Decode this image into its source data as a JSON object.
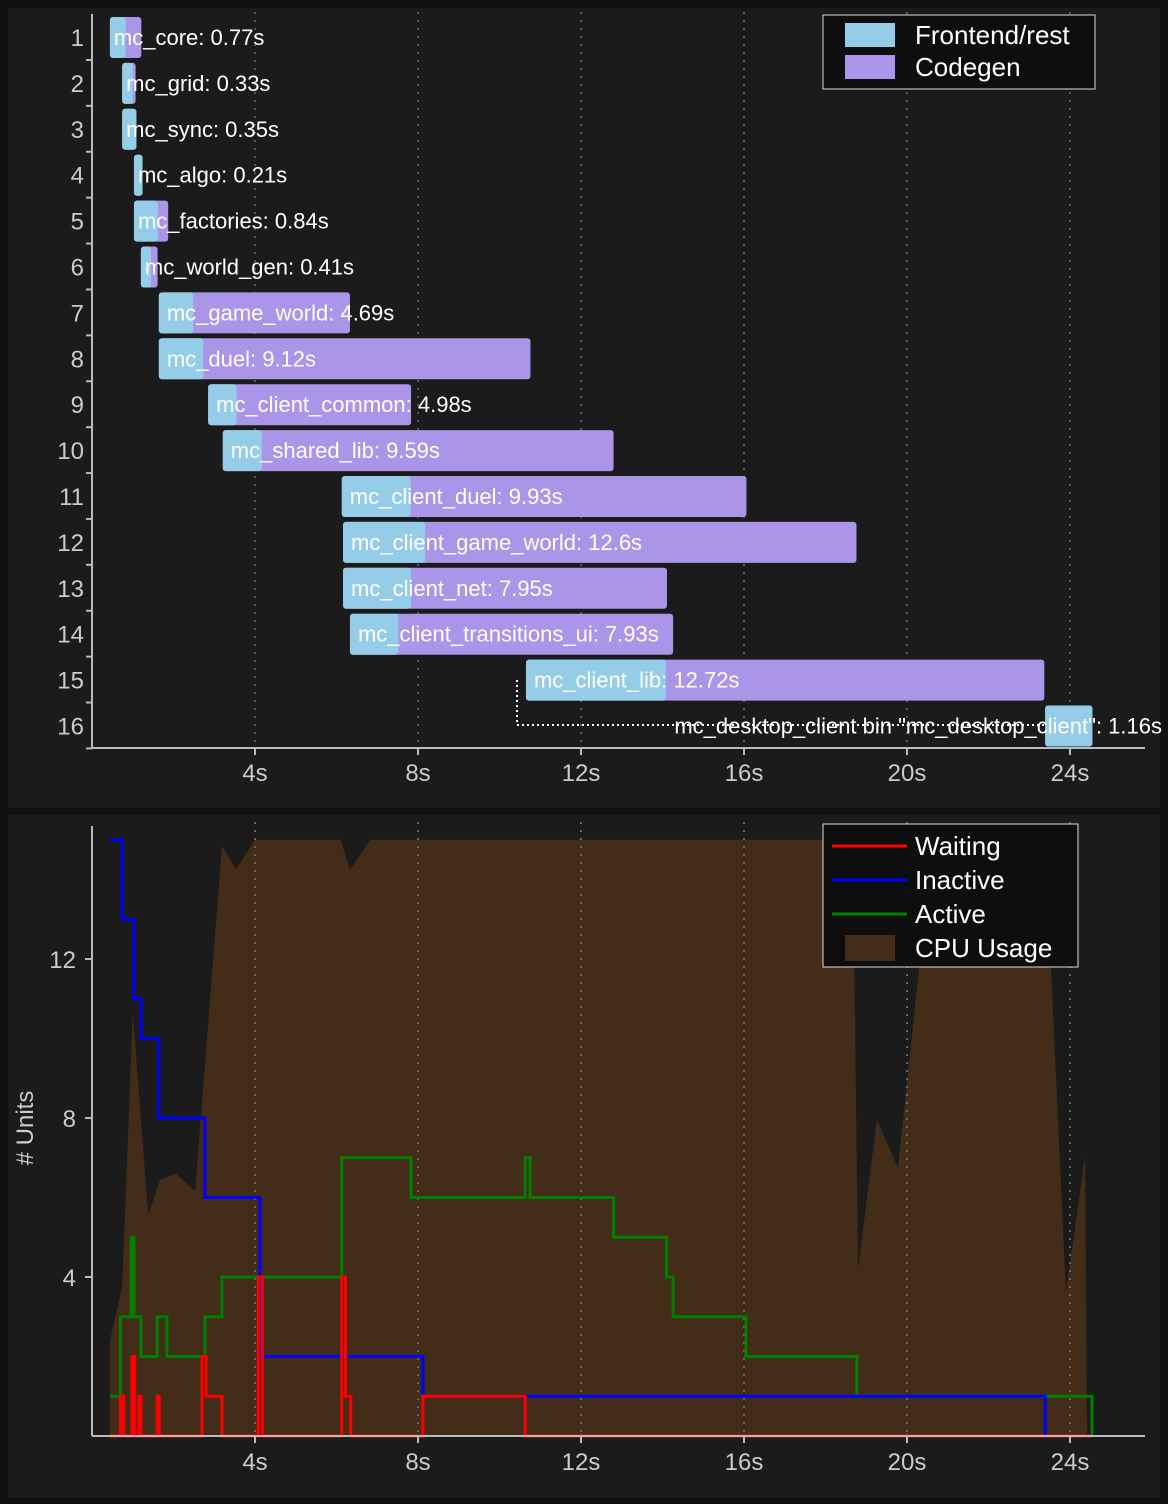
{
  "chart_data": [
    {
      "type": "bar",
      "subtype": "gantt",
      "x_unit": "s",
      "xlim": [
        0,
        25.8
      ],
      "x_ticks": [
        "4s",
        "8s",
        "12s",
        "16s",
        "20s",
        "24s"
      ],
      "x_tick_values": [
        4,
        8,
        12,
        16,
        20,
        24
      ],
      "grid": true,
      "legend_position": "top-right",
      "legend": [
        {
          "name": "Frontend/rest",
          "color": "#95cce8"
        },
        {
          "name": "Codegen",
          "color": "#aa95e8"
        }
      ],
      "units": [
        {
          "row": "1",
          "name": "mc_core",
          "start": 0.44,
          "duration": 0.77,
          "label": "mc_core: 0.77s",
          "frontend_fraction": 0.5
        },
        {
          "row": "2",
          "name": "mc_grid",
          "start": 0.74,
          "duration": 0.33,
          "label": "mc_grid: 0.33s",
          "frontend_fraction": 0.8
        },
        {
          "row": "3",
          "name": "mc_sync",
          "start": 0.74,
          "duration": 0.35,
          "label": "mc_sync: 0.35s",
          "frontend_fraction": 1.0
        },
        {
          "row": "4",
          "name": "mc_algo",
          "start": 1.03,
          "duration": 0.21,
          "label": "mc_algo: 0.21s",
          "frontend_fraction": 1.0
        },
        {
          "row": "5",
          "name": "mc_factories",
          "start": 1.03,
          "duration": 0.84,
          "label": "mc_factories: 0.84s",
          "frontend_fraction": 0.7
        },
        {
          "row": "6",
          "name": "mc_world_gen",
          "start": 1.2,
          "duration": 0.41,
          "label": "mc_world_gen: 0.41s",
          "frontend_fraction": 0.6
        },
        {
          "row": "7",
          "name": "mc_game_world",
          "start": 1.64,
          "duration": 4.69,
          "label": "mc_game_world: 4.69s",
          "frontend_fraction": 0.18
        },
        {
          "row": "8",
          "name": "mc_duel",
          "start": 1.64,
          "duration": 9.12,
          "label": "mc_duel: 9.12s",
          "frontend_fraction": 0.12
        },
        {
          "row": "9",
          "name": "mc_client_common",
          "start": 2.85,
          "duration": 4.98,
          "label": "mc_client_common: 4.98s",
          "frontend_fraction": 0.14
        },
        {
          "row": "10",
          "name": "mc_shared_lib",
          "start": 3.21,
          "duration": 9.59,
          "label": "mc_shared_lib: 9.59s",
          "frontend_fraction": 0.1
        },
        {
          "row": "11",
          "name": "mc_client_duel",
          "start": 6.13,
          "duration": 9.93,
          "label": "mc_client_duel: 9.93s",
          "frontend_fraction": 0.17
        },
        {
          "row": "12",
          "name": "mc_client_game_world",
          "start": 6.16,
          "duration": 12.6,
          "label": "mc_client_game_world: 12.6s",
          "frontend_fraction": 0.16
        },
        {
          "row": "13",
          "name": "mc_client_net",
          "start": 6.16,
          "duration": 7.95,
          "label": "mc_client_net: 7.95s",
          "frontend_fraction": 0.21
        },
        {
          "row": "14",
          "name": "mc_client_transitions_ui",
          "start": 6.33,
          "duration": 7.93,
          "label": "mc_client_transitions_ui: 7.93s",
          "frontend_fraction": 0.15
        },
        {
          "row": "15",
          "name": "mc_client_lib",
          "start": 10.65,
          "duration": 12.72,
          "label": "mc_client_lib: 12.72s",
          "frontend_fraction": 0.27
        },
        {
          "row": "16",
          "name": "mc_desktop_client",
          "start": 23.39,
          "duration": 1.16,
          "label": "mc_desktop_client bin \"mc_desktop_client\": 1.16s",
          "frontend_fraction": 1.0
        }
      ]
    },
    {
      "type": "line",
      "ylabel": "# Units",
      "xlim": [
        0,
        25.8
      ],
      "ylim": [
        0,
        15
      ],
      "x_ticks": [
        "4s",
        "8s",
        "12s",
        "16s",
        "20s",
        "24s"
      ],
      "x_tick_values": [
        4,
        8,
        12,
        16,
        20,
        24
      ],
      "y_ticks": [
        "4",
        "8",
        "12"
      ],
      "y_tick_values": [
        4,
        8,
        12
      ],
      "grid": true,
      "legend_position": "top-right",
      "series": [
        {
          "name": "Waiting",
          "color": "#ff0000",
          "step": true,
          "points": [
            [
              0.44,
              0
            ],
            [
              0.7,
              1
            ],
            [
              0.78,
              0
            ],
            [
              0.98,
              2
            ],
            [
              1.05,
              0
            ],
            [
              1.15,
              1
            ],
            [
              1.2,
              0
            ],
            [
              1.6,
              1
            ],
            [
              1.65,
              0
            ],
            [
              2.7,
              2
            ],
            [
              2.8,
              1
            ],
            [
              3.19,
              0
            ],
            [
              4.08,
              4
            ],
            [
              4.18,
              0
            ],
            [
              6.13,
              4
            ],
            [
              6.22,
              1
            ],
            [
              6.35,
              0
            ],
            [
              8.12,
              1
            ],
            [
              10.63,
              0
            ],
            [
              24.54,
              0
            ]
          ]
        },
        {
          "name": "Inactive",
          "color": "#0000ff",
          "step": true,
          "points": [
            [
              0.44,
              15
            ],
            [
              0.74,
              13
            ],
            [
              1.03,
              11
            ],
            [
              1.2,
              10
            ],
            [
              1.64,
              8
            ],
            [
              2.77,
              6
            ],
            [
              4.12,
              2
            ],
            [
              8.12,
              1
            ],
            [
              23.39,
              0
            ],
            [
              24.54,
              0
            ]
          ]
        },
        {
          "name": "Active",
          "color": "#008000",
          "step": true,
          "points": [
            [
              0.44,
              1
            ],
            [
              0.7,
              3
            ],
            [
              0.96,
              5
            ],
            [
              1.03,
              3
            ],
            [
              1.2,
              2
            ],
            [
              1.6,
              3
            ],
            [
              1.84,
              2
            ],
            [
              2.77,
              3
            ],
            [
              3.19,
              4
            ],
            [
              6.13,
              7
            ],
            [
              7.83,
              6
            ],
            [
              10.63,
              7
            ],
            [
              10.75,
              6
            ],
            [
              12.8,
              5
            ],
            [
              14.1,
              4
            ],
            [
              14.26,
              3
            ],
            [
              16.05,
              2
            ],
            [
              18.77,
              1
            ],
            [
              24.54,
              0
            ]
          ]
        },
        {
          "name": "CPU Usage",
          "color": "#432c18",
          "type": "area",
          "unit": "%",
          "points": [
            [
              0.44,
              16
            ],
            [
              0.74,
              25
            ],
            [
              1.0,
              71
            ],
            [
              1.38,
              37
            ],
            [
              1.67,
              43
            ],
            [
              2.06,
              44
            ],
            [
              2.53,
              41
            ],
            [
              3.19,
              99
            ],
            [
              3.53,
              95
            ],
            [
              4.0,
              100
            ],
            [
              6.1,
              100
            ],
            [
              6.33,
              95
            ],
            [
              6.83,
              100
            ],
            [
              18.67,
              100
            ],
            [
              18.8,
              28
            ],
            [
              19.26,
              53
            ],
            [
              19.78,
              45
            ],
            [
              20.32,
              80
            ],
            [
              20.52,
              100
            ],
            [
              23.39,
              100
            ],
            [
              23.9,
              24
            ],
            [
              24.37,
              47
            ],
            [
              24.42,
              0
            ]
          ]
        }
      ]
    }
  ]
}
